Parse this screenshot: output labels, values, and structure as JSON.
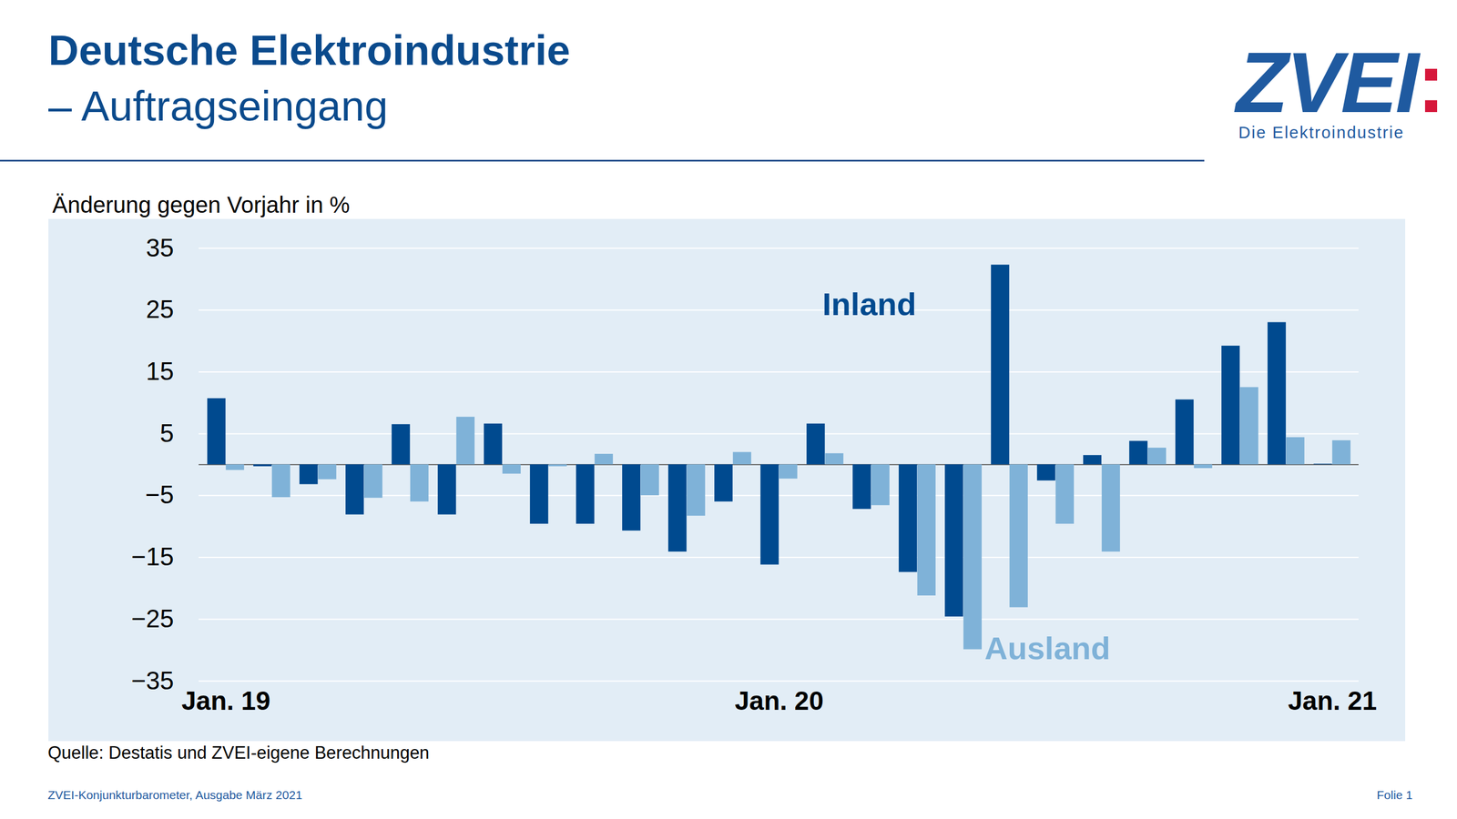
{
  "chart_data": {
    "type": "bar",
    "title": "Deutsche Elektroindustrie",
    "subtitle": "– Auftragseingang",
    "y_label": "Änderung gegen Vorjahr in %",
    "source": "Quelle: Destatis und ZVEI-eigene Berechnungen",
    "footer": "ZVEI-Konjunkturbarometer, Ausgabe März 2021",
    "page": "Folie 1",
    "logo": "ZVEI:",
    "logo_subtitle": "Die Elektroindustrie",
    "categories": [
      "Jan. 19",
      null,
      null,
      null,
      null,
      null,
      null,
      null,
      null,
      null,
      null,
      null,
      "Jan. 20",
      null,
      null,
      null,
      null,
      null,
      null,
      null,
      null,
      null,
      null,
      null,
      "Jan. 21"
    ],
    "series": [
      {
        "name": "Inland",
        "color": "#004a8f",
        "values": [
          10.7,
          -0.3,
          -3.2,
          -8.1,
          6.5,
          -8.1,
          6.6,
          -9.6,
          -9.6,
          -10.7,
          -14.1,
          -6.0,
          -16.2,
          6.6,
          -7.2,
          -17.4,
          -24.6,
          32.3,
          -2.6,
          1.5,
          3.8,
          10.5,
          19.2,
          23.0,
          0.1
        ]
      },
      {
        "name": "Ausland",
        "color": "#7fb2d8",
        "values": [
          -0.9,
          -5.3,
          -2.4,
          -5.4,
          -6.0,
          7.7,
          -1.5,
          -0.3,
          1.7,
          -5.0,
          -8.3,
          2.0,
          -2.3,
          1.8,
          -6.6,
          -21.2,
          -29.9,
          -23.1,
          -9.6,
          -14.1,
          2.7,
          -0.6,
          12.5,
          4.4,
          3.9
        ]
      }
    ],
    "ylim": [
      -35,
      35
    ],
    "yticks": [
      -35,
      -25,
      -15,
      -5,
      5,
      15,
      25,
      35
    ],
    "grid": true
  }
}
